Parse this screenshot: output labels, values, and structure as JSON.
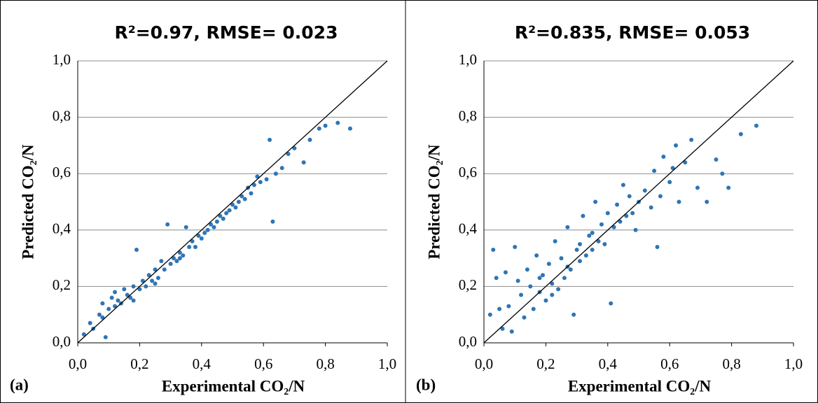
{
  "chart_data": [
    {
      "type": "scatter",
      "title": "R²=0.97, RMSE= 0.023",
      "panel_label": "(a)",
      "xlabel": "Experimental CO₂/N",
      "ylabel": "Predicted CO₂/N",
      "color": "#2e75b6",
      "grid": true,
      "xlim": [
        0,
        1
      ],
      "ylim": [
        0,
        1
      ],
      "xticks": [
        {
          "value": 0,
          "label": "0,0"
        },
        {
          "value": 0.2,
          "label": "0,2"
        },
        {
          "value": 0.4,
          "label": "0,4"
        },
        {
          "value": 0.6,
          "label": "0,6"
        },
        {
          "value": 0.8,
          "label": "0,8"
        },
        {
          "value": 1,
          "label": "1,0"
        }
      ],
      "yticks": [
        {
          "value": 0,
          "label": "0,0"
        },
        {
          "value": 0.2,
          "label": "0,2"
        },
        {
          "value": 0.4,
          "label": "0,4"
        },
        {
          "value": 0.6,
          "label": "0,6"
        },
        {
          "value": 0.8,
          "label": "0,8"
        },
        {
          "value": 1,
          "label": "1,0"
        }
      ],
      "x": [
        0.02,
        0.04,
        0.05,
        0.07,
        0.08,
        0.09,
        0.1,
        0.11,
        0.12,
        0.13,
        0.14,
        0.15,
        0.16,
        0.17,
        0.18,
        0.19,
        0.2,
        0.21,
        0.22,
        0.23,
        0.24,
        0.25,
        0.26,
        0.27,
        0.28,
        0.29,
        0.3,
        0.31,
        0.32,
        0.33,
        0.34,
        0.35,
        0.36,
        0.37,
        0.38,
        0.39,
        0.4,
        0.41,
        0.42,
        0.43,
        0.44,
        0.45,
        0.46,
        0.47,
        0.48,
        0.49,
        0.5,
        0.51,
        0.52,
        0.53,
        0.54,
        0.55,
        0.56,
        0.57,
        0.58,
        0.59,
        0.61,
        0.62,
        0.63,
        0.64,
        0.66,
        0.68,
        0.7,
        0.73,
        0.75,
        0.78,
        0.8,
        0.84,
        0.88,
        0.08,
        0.12,
        0.18,
        0.25,
        0.33
      ],
      "values": [
        0.03,
        0.07,
        0.05,
        0.1,
        0.09,
        0.02,
        0.12,
        0.16,
        0.13,
        0.15,
        0.14,
        0.19,
        0.17,
        0.16,
        0.2,
        0.33,
        0.19,
        0.22,
        0.2,
        0.24,
        0.22,
        0.26,
        0.23,
        0.29,
        0.26,
        0.42,
        0.28,
        0.3,
        0.29,
        0.32,
        0.31,
        0.41,
        0.34,
        0.36,
        0.34,
        0.38,
        0.37,
        0.39,
        0.4,
        0.42,
        0.41,
        0.43,
        0.45,
        0.44,
        0.46,
        0.47,
        0.49,
        0.48,
        0.5,
        0.52,
        0.51,
        0.55,
        0.53,
        0.56,
        0.59,
        0.57,
        0.58,
        0.72,
        0.43,
        0.6,
        0.62,
        0.67,
        0.69,
        0.64,
        0.72,
        0.76,
        0.77,
        0.78,
        0.76,
        0.14,
        0.18,
        0.15,
        0.21,
        0.3
      ]
    },
    {
      "type": "scatter",
      "title": "R²=0.835, RMSE= 0.053",
      "panel_label": "(b)",
      "xlabel": "Experimental CO₂/N",
      "ylabel": "Predicted CO₂/N",
      "color": "#2e75b6",
      "grid": true,
      "xlim": [
        0,
        1
      ],
      "ylim": [
        0,
        1
      ],
      "xticks": [
        {
          "value": 0,
          "label": "0,0"
        },
        {
          "value": 0.2,
          "label": "0,2"
        },
        {
          "value": 0.4,
          "label": "0,4"
        },
        {
          "value": 0.6,
          "label": "0,6"
        },
        {
          "value": 0.8,
          "label": "0,8"
        },
        {
          "value": 1,
          "label": "1,0"
        }
      ],
      "yticks": [
        {
          "value": 0,
          "label": "0,0"
        },
        {
          "value": 0.2,
          "label": "0,2"
        },
        {
          "value": 0.4,
          "label": "0,4"
        },
        {
          "value": 0.6,
          "label": "0,6"
        },
        {
          "value": 0.8,
          "label": "0,8"
        },
        {
          "value": 1,
          "label": "1,0"
        }
      ],
      "x": [
        0.02,
        0.03,
        0.04,
        0.05,
        0.06,
        0.07,
        0.08,
        0.09,
        0.1,
        0.11,
        0.12,
        0.13,
        0.14,
        0.15,
        0.16,
        0.17,
        0.18,
        0.19,
        0.2,
        0.21,
        0.22,
        0.23,
        0.24,
        0.25,
        0.26,
        0.27,
        0.28,
        0.29,
        0.3,
        0.31,
        0.32,
        0.33,
        0.34,
        0.35,
        0.36,
        0.37,
        0.38,
        0.39,
        0.4,
        0.41,
        0.42,
        0.43,
        0.44,
        0.45,
        0.46,
        0.47,
        0.48,
        0.49,
        0.5,
        0.52,
        0.54,
        0.55,
        0.56,
        0.57,
        0.58,
        0.6,
        0.61,
        0.62,
        0.63,
        0.65,
        0.67,
        0.69,
        0.72,
        0.75,
        0.77,
        0.79,
        0.83,
        0.88,
        0.18,
        0.22,
        0.27,
        0.31,
        0.35
      ],
      "values": [
        0.1,
        0.33,
        0.23,
        0.12,
        0.05,
        0.25,
        0.13,
        0.04,
        0.34,
        0.22,
        0.17,
        0.09,
        0.26,
        0.2,
        0.12,
        0.31,
        0.18,
        0.24,
        0.15,
        0.28,
        0.21,
        0.36,
        0.19,
        0.3,
        0.23,
        0.41,
        0.26,
        0.1,
        0.33,
        0.29,
        0.45,
        0.31,
        0.38,
        0.33,
        0.5,
        0.36,
        0.42,
        0.35,
        0.46,
        0.14,
        0.41,
        0.49,
        0.43,
        0.56,
        0.45,
        0.52,
        0.46,
        0.4,
        0.5,
        0.54,
        0.48,
        0.61,
        0.34,
        0.52,
        0.66,
        0.57,
        0.62,
        0.7,
        0.5,
        0.64,
        0.72,
        0.55,
        0.5,
        0.65,
        0.6,
        0.55,
        0.74,
        0.77,
        0.23,
        0.17,
        0.27,
        0.35,
        0.39
      ]
    }
  ]
}
